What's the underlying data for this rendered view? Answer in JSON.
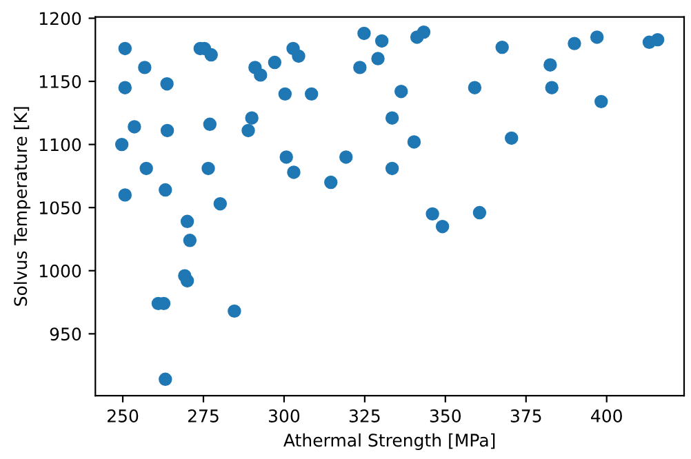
{
  "chart_data": {
    "type": "scatter",
    "xlabel": "Athermal Strength [MPa]",
    "ylabel": "Solvus Temperature [K]",
    "x": [
      250.7,
      250.7,
      256.8,
      263.7,
      253.6,
      249.7,
      263.8,
      257.3,
      250.7,
      263.2,
      270,
      274,
      275.3,
      277.4,
      277,
      276.5,
      280.2,
      288.9,
      290,
      291,
      292.7,
      297.1,
      300.3,
      302.8,
      304.5,
      308.5,
      300.7,
      303,
      314.5,
      319.2,
      323.5,
      324.8,
      330.3,
      329.1,
      341.2,
      343.3,
      336.3,
      333.5,
      340.3,
      333.5,
      346,
      349.1,
      360.6,
      359.1,
      367.6,
      370.5,
      382.5,
      383,
      390,
      397,
      398.3,
      413.2,
      415.8,
      270.8,
      269.2,
      270,
      261,
      262.7,
      284.6,
      263.2
    ],
    "values": [
      1176,
      1145,
      1161,
      1148,
      1114,
      1100,
      1111,
      1081,
      1060,
      1064,
      1039,
      1176,
      1176,
      1171,
      1116,
      1081,
      1053,
      1111,
      1121,
      1161,
      1155,
      1165,
      1140,
      1176,
      1170,
      1140,
      1090,
      1078,
      1070,
      1090,
      1161,
      1188,
      1182,
      1168,
      1185,
      1189,
      1142,
      1121,
      1102,
      1081,
      1045,
      1035,
      1046,
      1145,
      1177,
      1105,
      1163,
      1145,
      1180,
      1185,
      1134,
      1181,
      1183,
      1024,
      996,
      992,
      974,
      974,
      968,
      914
    ],
    "color": "#1f77b4",
    "marker": "circle",
    "xlim": [
      241.5,
      424
    ],
    "ylim": [
      901,
      1201
    ],
    "xticks": [
      250,
      275,
      300,
      325,
      350,
      375,
      400
    ],
    "yticks": [
      950,
      1000,
      1050,
      1100,
      1150,
      1200
    ],
    "grid": false
  }
}
